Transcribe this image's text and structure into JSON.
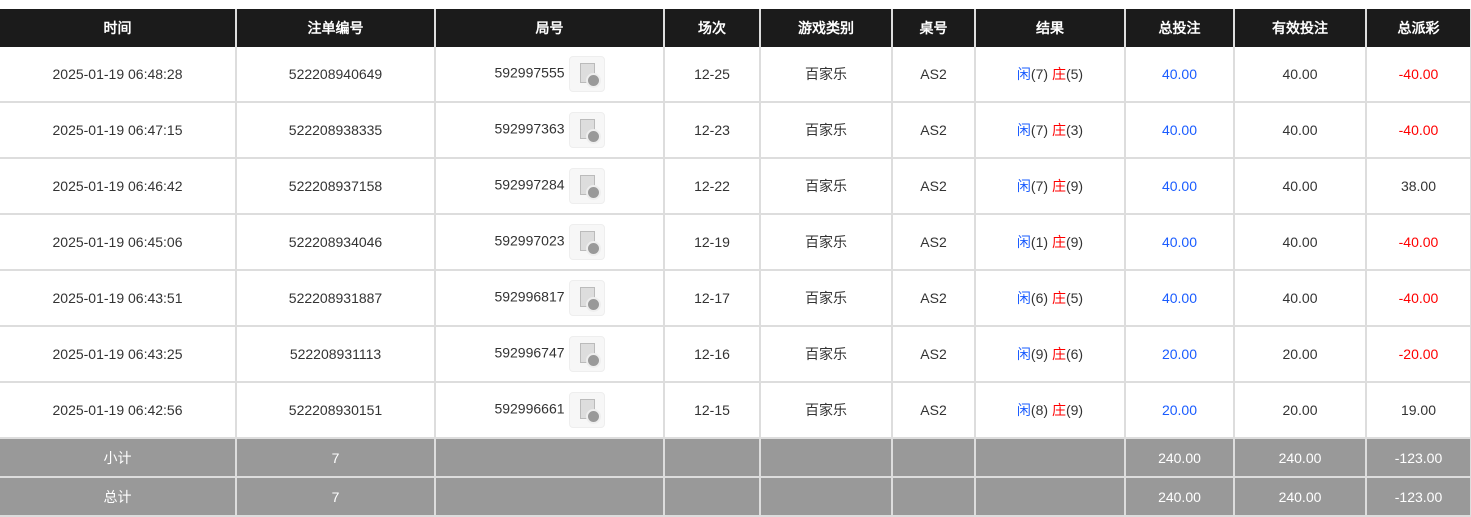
{
  "headers": [
    "时间",
    "注单编号",
    "局号",
    "场次",
    "游戏类别",
    "桌号",
    "结果",
    "总投注",
    "有效投注",
    "总派彩"
  ],
  "result_labels": {
    "player": "闲",
    "banker": "庄"
  },
  "colors": {
    "player": "#1a5cff",
    "banker": "#ff0000",
    "bet": "#1a5cff",
    "negative": "#ff0000"
  },
  "rows": [
    {
      "time": "2025-01-19 06:48:28",
      "order": "522208940649",
      "round": "592997555",
      "session": "12-25",
      "game": "百家乐",
      "table": "AS2",
      "player": "(7)",
      "banker": "(5)",
      "bet": "40.00",
      "valid": "40.00",
      "payout": "-40.00"
    },
    {
      "time": "2025-01-19 06:47:15",
      "order": "522208938335",
      "round": "592997363",
      "session": "12-23",
      "game": "百家乐",
      "table": "AS2",
      "player": "(7)",
      "banker": "(3)",
      "bet": "40.00",
      "valid": "40.00",
      "payout": "-40.00"
    },
    {
      "time": "2025-01-19 06:46:42",
      "order": "522208937158",
      "round": "592997284",
      "session": "12-22",
      "game": "百家乐",
      "table": "AS2",
      "player": "(7)",
      "banker": "(9)",
      "bet": "40.00",
      "valid": "40.00",
      "payout": "38.00"
    },
    {
      "time": "2025-01-19 06:45:06",
      "order": "522208934046",
      "round": "592997023",
      "session": "12-19",
      "game": "百家乐",
      "table": "AS2",
      "player": "(1)",
      "banker": "(9)",
      "bet": "40.00",
      "valid": "40.00",
      "payout": "-40.00"
    },
    {
      "time": "2025-01-19 06:43:51",
      "order": "522208931887",
      "round": "592996817",
      "session": "12-17",
      "game": "百家乐",
      "table": "AS2",
      "player": "(6)",
      "banker": "(5)",
      "bet": "40.00",
      "valid": "40.00",
      "payout": "-40.00"
    },
    {
      "time": "2025-01-19 06:43:25",
      "order": "522208931113",
      "round": "592996747",
      "session": "12-16",
      "game": "百家乐",
      "table": "AS2",
      "player": "(9)",
      "banker": "(6)",
      "bet": "20.00",
      "valid": "20.00",
      "payout": "-20.00"
    },
    {
      "time": "2025-01-19 06:42:56",
      "order": "522208930151",
      "round": "592996661",
      "session": "12-15",
      "game": "百家乐",
      "table": "AS2",
      "player": "(8)",
      "banker": "(9)",
      "bet": "20.00",
      "valid": "20.00",
      "payout": "19.00"
    }
  ],
  "summary": [
    {
      "label": "小计",
      "count": "7",
      "bet": "240.00",
      "valid": "240.00",
      "payout": "-123.00"
    },
    {
      "label": "总计",
      "count": "7",
      "bet": "240.00",
      "valid": "240.00",
      "payout": "-123.00"
    }
  ]
}
